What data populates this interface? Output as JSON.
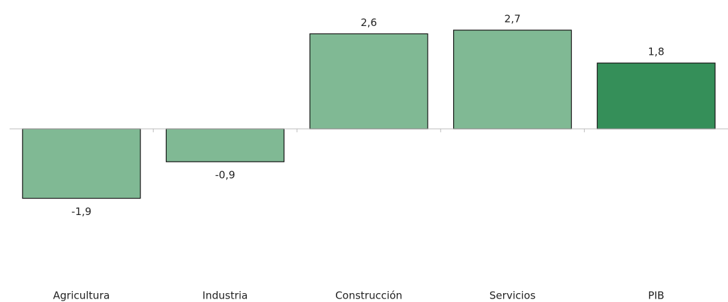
{
  "chart_data": {
    "type": "bar",
    "categories": [
      "Agricultura",
      "Industria",
      "Construcción",
      "Servicios",
      "PIB"
    ],
    "values": [
      -1.9,
      -0.9,
      2.6,
      2.7,
      1.8
    ],
    "value_labels": [
      "-1,9",
      "-0,9",
      "2,6",
      "2,7",
      "1,8"
    ],
    "colors": [
      "#80b994",
      "#80b994",
      "#80b994",
      "#80b994",
      "#358f59"
    ],
    "ylim": [
      -3.5,
      3
    ]
  }
}
